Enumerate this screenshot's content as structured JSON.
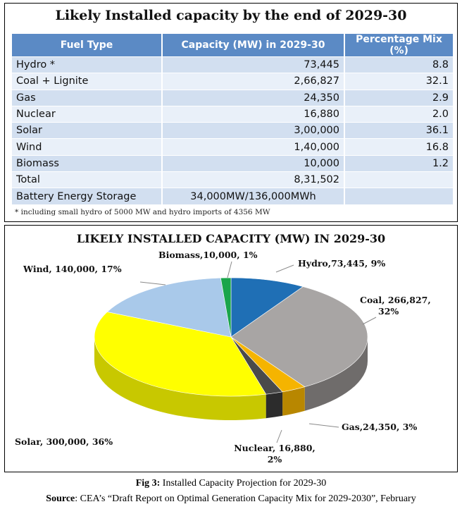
{
  "table": {
    "title": "Likely Installed capacity by the end of 2029-30",
    "headers": [
      "Fuel Type",
      "Capacity (MW) in 2029-30",
      "Percentage Mix (%)"
    ],
    "rows": [
      {
        "fuel": "Hydro *",
        "capacity": "73,445",
        "mix": "8.8"
      },
      {
        "fuel": "Coal + Lignite",
        "capacity": "2,66,827",
        "mix": "32.1"
      },
      {
        "fuel": "Gas",
        "capacity": "24,350",
        "mix": "2.9"
      },
      {
        "fuel": "Nuclear",
        "capacity": "16,880",
        "mix": "2.0"
      },
      {
        "fuel": "Solar",
        "capacity": "3,00,000",
        "mix": "36.1"
      },
      {
        "fuel": "Wind",
        "capacity": "1,40,000",
        "mix": "16.8"
      },
      {
        "fuel": "Biomass",
        "capacity": "10,000",
        "mix": "1.2"
      },
      {
        "fuel": "Total",
        "capacity": "8,31,502",
        "mix": ""
      }
    ],
    "storage": {
      "fuel": "Battery Energy Storage",
      "capacity": "34,000MW/136,000MWh",
      "mix": ""
    },
    "footnote": "* including small hydro of 5000 MW and hydro imports of 4356 MW"
  },
  "chart_data": {
    "type": "pie",
    "title": "LIKELY INSTALLED CAPACITY (MW) IN 2029-30",
    "slices": [
      {
        "name": "Hydro",
        "value": 73445,
        "label": "Hydro,73,445, 9%",
        "color": "#1f6fb5",
        "side": "#134a7d"
      },
      {
        "name": "Coal",
        "value": 266827,
        "label": "Coal, 266,827, 32%",
        "color": "#a8a5a4",
        "side": "#6f6c6b"
      },
      {
        "name": "Gas",
        "value": 24350,
        "label": "Gas,24,350, 3%",
        "color": "#f5b400",
        "side": "#b88700"
      },
      {
        "name": "Nuclear",
        "value": 16880,
        "label": "Nuclear, 16,880, 2%",
        "color": "#4a4a4a",
        "side": "#2c2c2c"
      },
      {
        "name": "Solar",
        "value": 300000,
        "label": "Solar, 300,000, 36%",
        "color": "#ffff00",
        "side": "#c8c800"
      },
      {
        "name": "Wind",
        "value": 140000,
        "label": "Wind, 140,000, 17%",
        "color": "#a9c9ea",
        "side": "#7e9dbd"
      },
      {
        "name": "Biomass",
        "value": 10000,
        "label": "Biomass,10,000, 1%",
        "color": "#1aa54b",
        "side": "#117033"
      }
    ]
  },
  "caption": {
    "fig_label": "Fig 3:",
    "fig_text": " Installed Capacity Projection for 2029-30",
    "source_label": "Source",
    "source_text": ": CEA’s “Draft Report on Optimal Generation Capacity Mix for 2029-2030”, February"
  }
}
